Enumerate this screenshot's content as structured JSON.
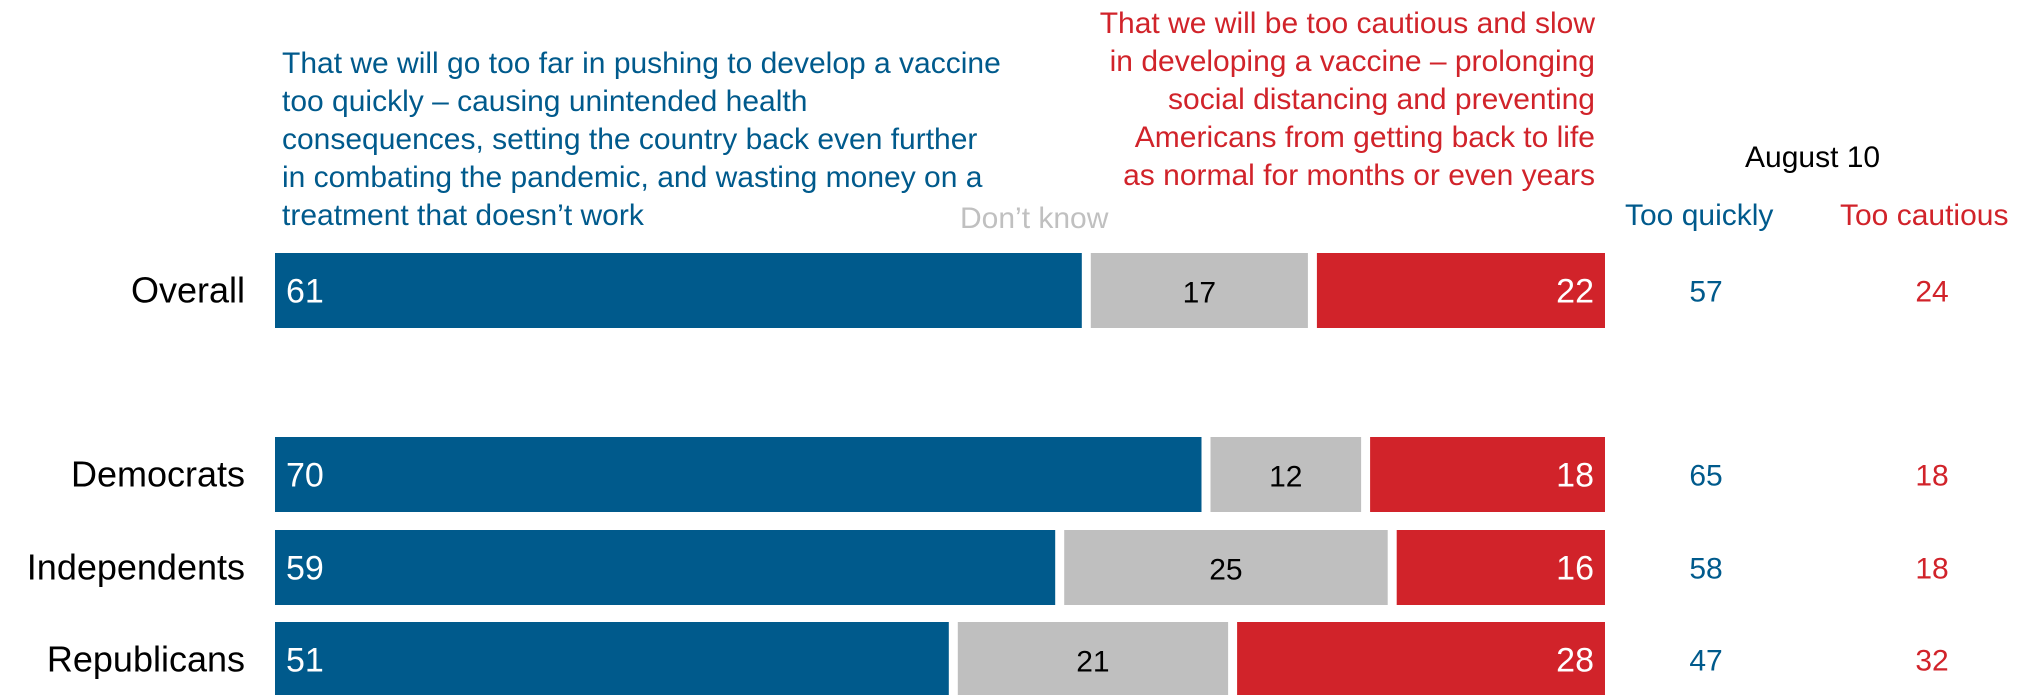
{
  "colors": {
    "too_quickly": "#005a8c",
    "dont_know": "#bfbfbf",
    "too_cautious": "#d1232a",
    "label_text": "#000000"
  },
  "headers": {
    "too_quickly": "That we will go too far in pushing to develop a vaccine too quickly – causing unintended health consequences, setting the country back even further in combating the pandemic, and wasting money on a treatment that doesn’t work",
    "too_cautious": "That we will be too cautious and slow in developing a vaccine – prolonging social distancing and preventing Americans from getting back to life as normal for months or even years",
    "dont_know": "Don’t know"
  },
  "comparison": {
    "title": "August 10",
    "col_quick": "Too quickly",
    "col_cautious": "Too cautious"
  },
  "chart_data": {
    "type": "bar",
    "orientation": "horizontal",
    "stacked": true,
    "categories": [
      "Overall",
      "Democrats",
      "Independents",
      "Republicans"
    ],
    "series": [
      {
        "name": "That we will go too far in pushing to develop a vaccine too quickly",
        "key": "too_quickly",
        "values": [
          61,
          70,
          59,
          51
        ]
      },
      {
        "name": "Don’t know",
        "key": "dont_know",
        "values": [
          17,
          12,
          25,
          21
        ]
      },
      {
        "name": "That we will be too cautious and slow in developing a vaccine",
        "key": "too_cautious",
        "values": [
          22,
          18,
          16,
          28
        ]
      }
    ],
    "comparison_series": {
      "title": "August 10",
      "too_quickly": [
        57,
        65,
        58,
        47
      ],
      "too_cautious": [
        24,
        18,
        18,
        32
      ]
    },
    "xlim": [
      0,
      100
    ],
    "grid": false,
    "legend": "top"
  }
}
